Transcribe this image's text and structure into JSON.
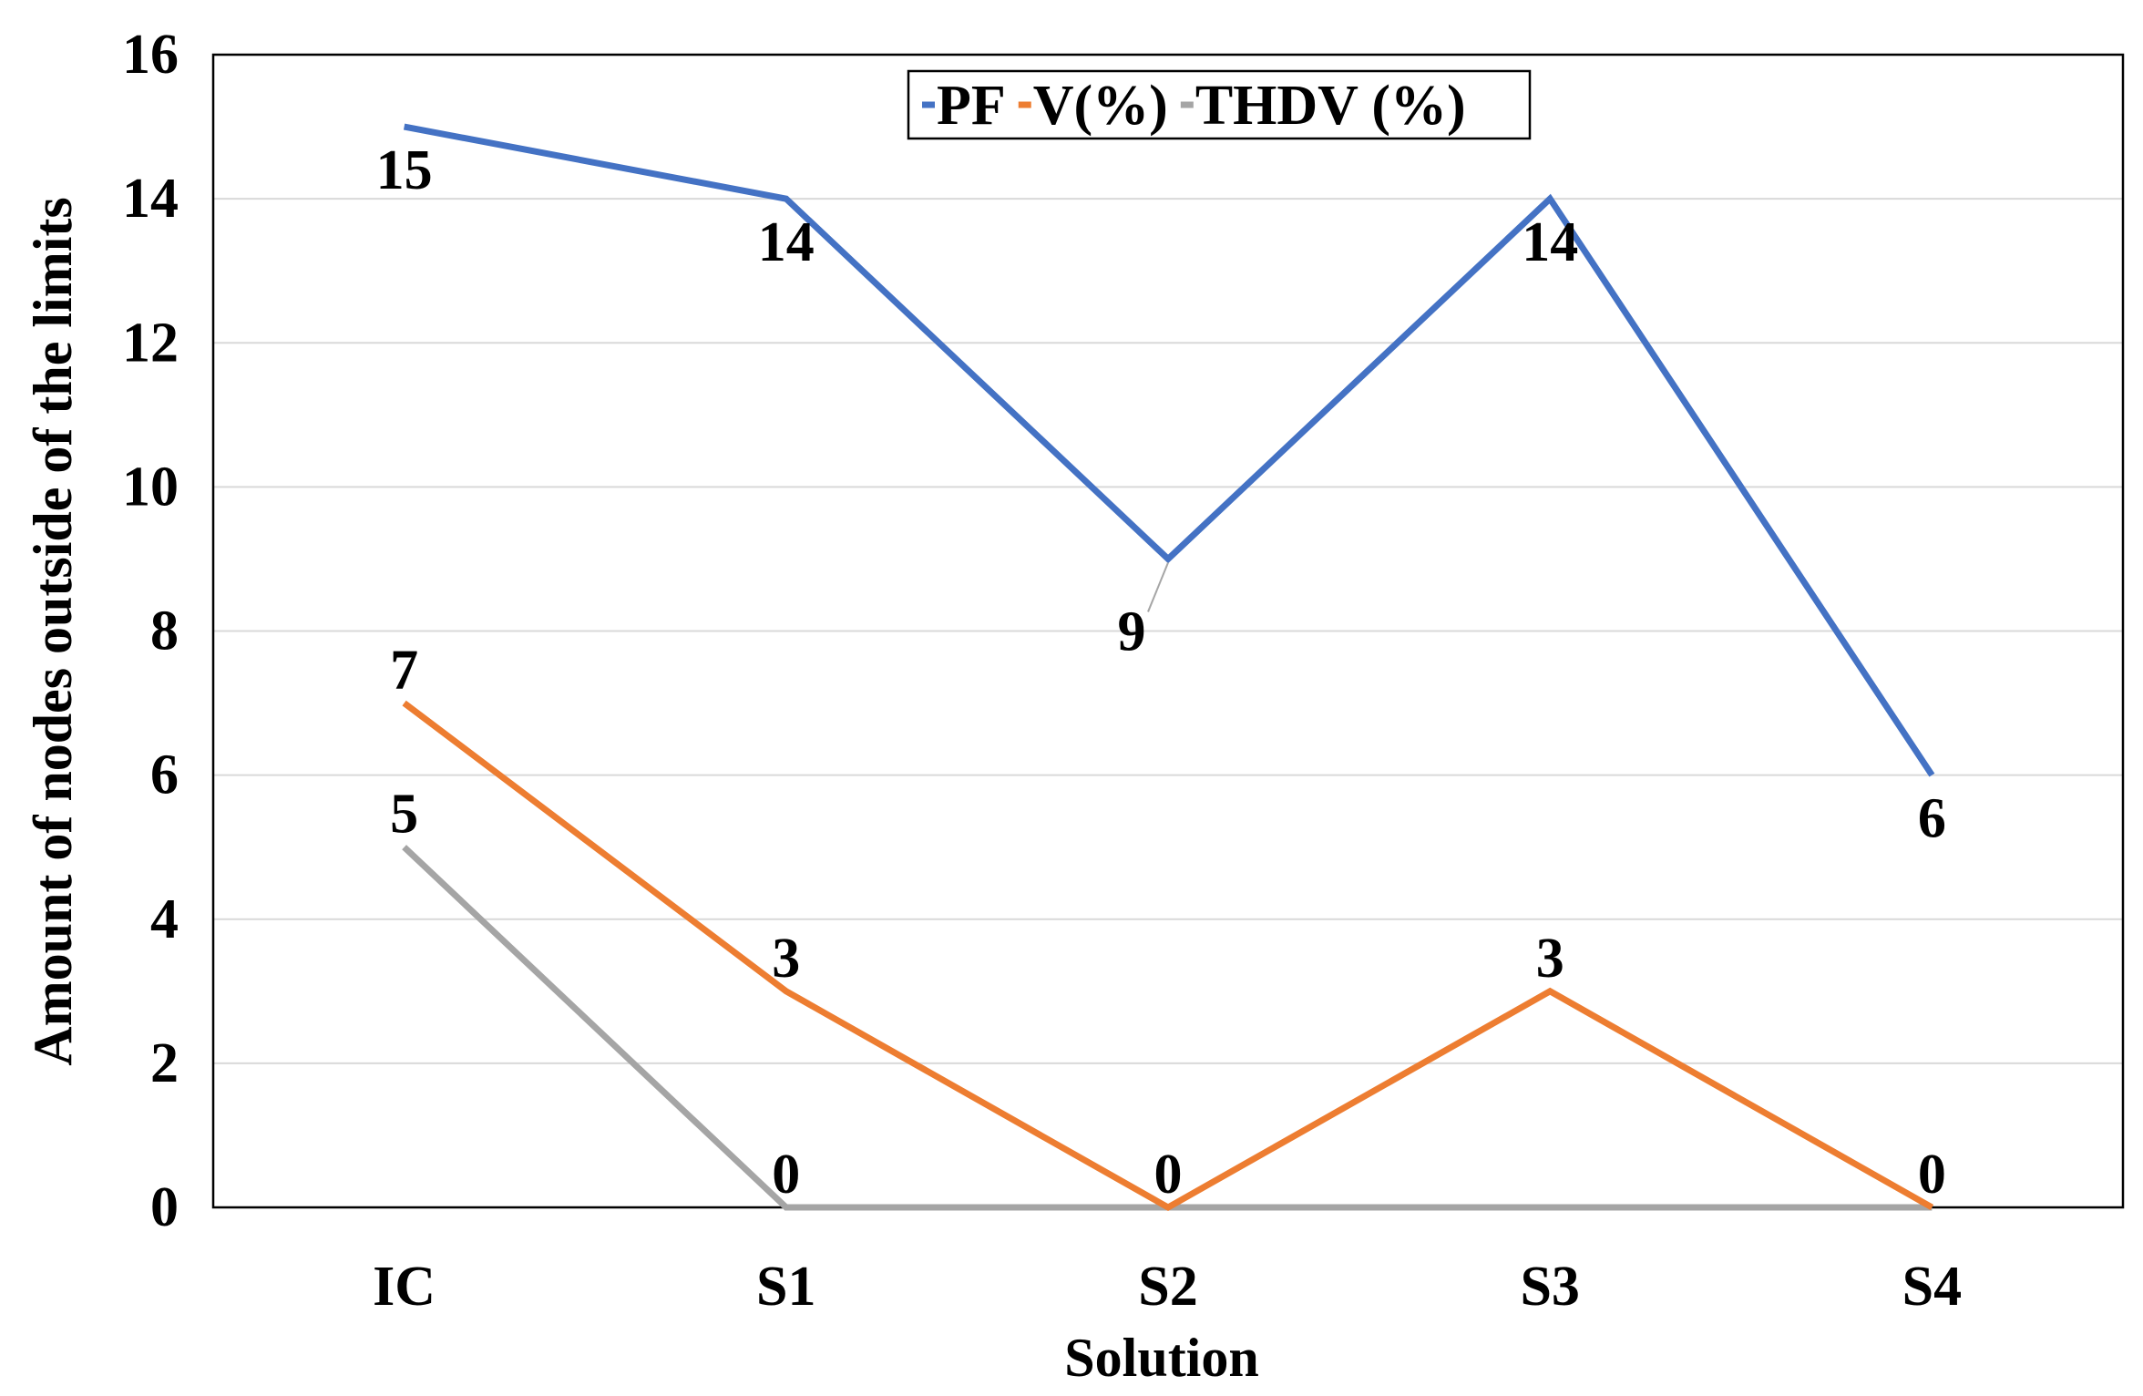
{
  "chart_data": {
    "type": "line",
    "title": "",
    "xlabel": "Solution",
    "ylabel": "Amount of nodes outside of the limits",
    "categories": [
      "IC",
      "S1",
      "S2",
      "S3",
      "S4"
    ],
    "ylim": [
      0,
      16
    ],
    "yticks": [
      0,
      2,
      4,
      6,
      8,
      10,
      12,
      14,
      16
    ],
    "grid": true,
    "legend_position": "top",
    "series": [
      {
        "name": "PF",
        "color": "#4472c4",
        "values": [
          15,
          14,
          9,
          14,
          6
        ],
        "labels": [
          "15",
          "14",
          "9",
          "14",
          "6"
        ]
      },
      {
        "name": "V(%)",
        "color": "#ed7d31",
        "values": [
          7,
          3,
          0,
          3,
          0
        ],
        "labels": [
          "7",
          "3",
          "0",
          "3",
          "0"
        ]
      },
      {
        "name": "THDV (%)",
        "color": "#a5a5a5",
        "values": [
          5,
          0,
          0,
          0,
          0
        ],
        "labels": [
          "5",
          "0",
          "",
          "",
          ""
        ]
      }
    ]
  }
}
